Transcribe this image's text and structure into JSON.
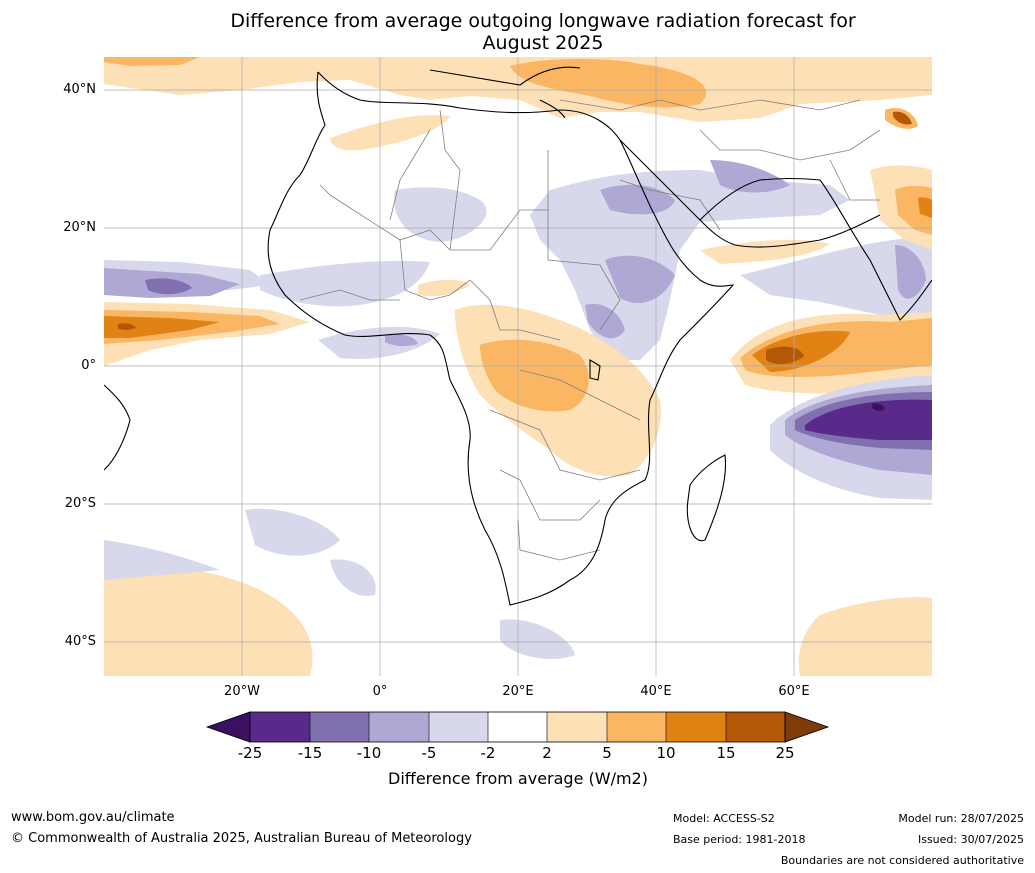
{
  "title": {
    "line1": "Difference from average outgoing longwave radiation forecast for",
    "line2": "August 2025"
  },
  "axes": {
    "lat_labels": [
      "40°N",
      "20°N",
      "0°",
      "20°S",
      "40°S"
    ],
    "lon_labels": [
      "20°W",
      "0°",
      "20°E",
      "40°E",
      "60°E"
    ]
  },
  "colorbar": {
    "ticks": [
      "-25",
      "-15",
      "-10",
      "-5",
      "-2",
      "2",
      "5",
      "10",
      "15",
      "25"
    ],
    "label": "Difference from average (W/m2)",
    "colors": [
      "#3b1060",
      "#5a2a8a",
      "#8070b0",
      "#b0a8d4",
      "#d8d8ec",
      "#ffffff",
      "#fde0b5",
      "#fbb663",
      "#e08214",
      "#b35806",
      "#7f3b08"
    ]
  },
  "footer": {
    "url": "www.bom.gov.au/climate",
    "copyright": "© Commonwealth of Australia 2025, Australian Bureau of Meteorology",
    "model": "Model: ACCESS-S2",
    "base_period": "Base period: 1981-2018",
    "model_run": "Model run: 28/07/2025",
    "issued": "Issued: 30/07/2025",
    "disclaimer": "Boundaries are not considered authoritative"
  }
}
